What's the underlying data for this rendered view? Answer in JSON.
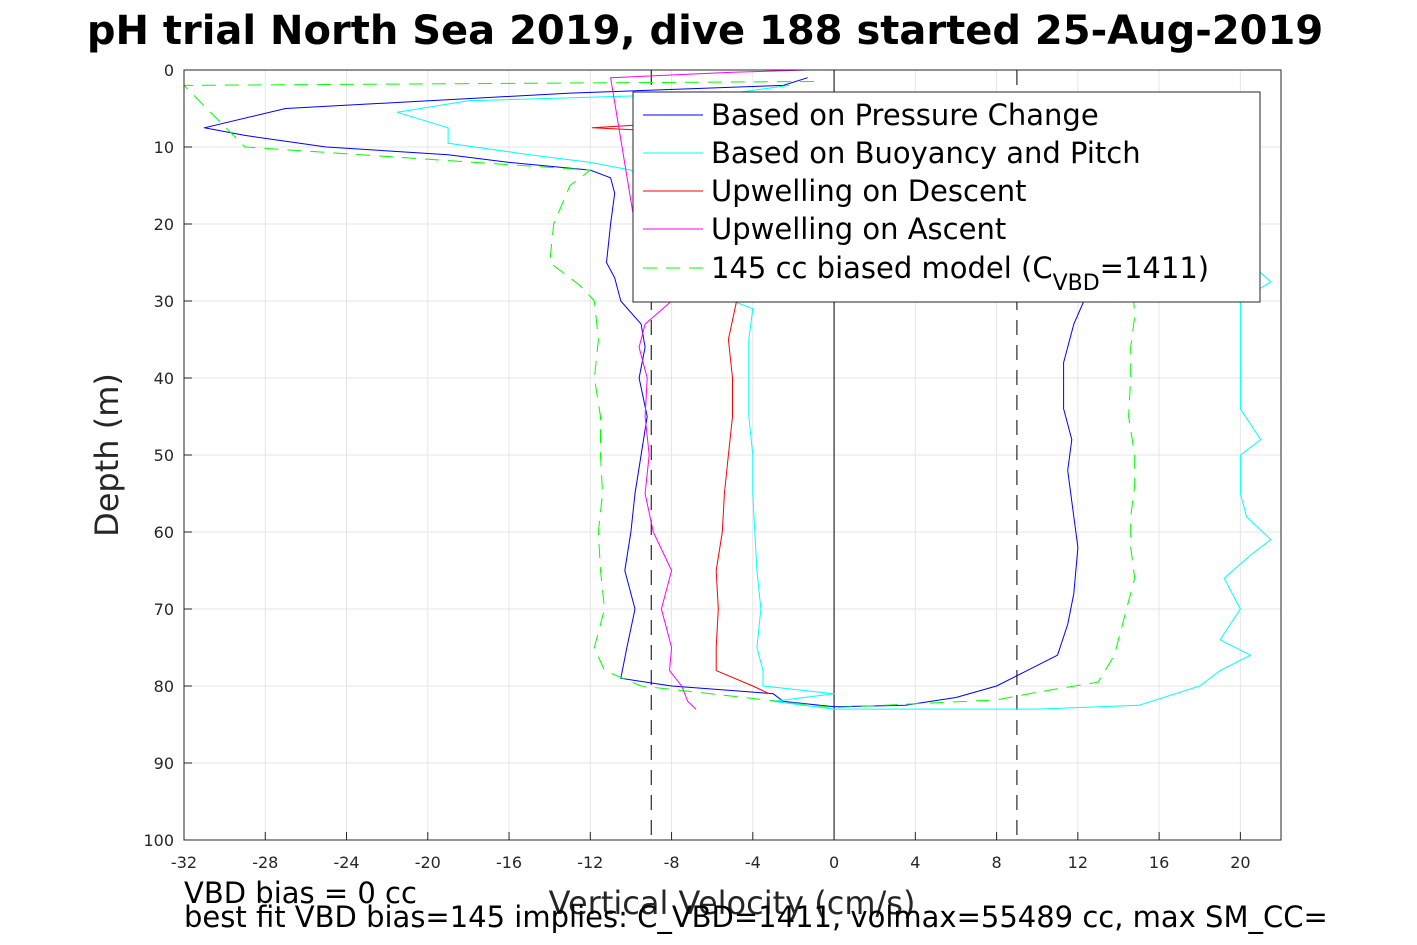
{
  "chart_data": {
    "type": "line",
    "title": "pH trial North Sea 2019, dive 188 started 25-Aug-2019",
    "xlabel": "Vertical Velocity (cm/s)",
    "ylabel": "Depth (m)",
    "xlim": [
      -32,
      22
    ],
    "ylim": [
      0,
      100
    ],
    "y_reversed": true,
    "grid": true,
    "xticks": [
      -32,
      -28,
      -24,
      -20,
      -16,
      -12,
      -8,
      -4,
      0,
      4,
      8,
      12,
      16,
      20
    ],
    "yticks": [
      0,
      10,
      20,
      30,
      40,
      50,
      60,
      70,
      80,
      90,
      100
    ],
    "legend_position": "top-right",
    "legend": {
      "pressure": "Based on Pressure Change",
      "buoyancy": "Based on Buoyancy and Pitch",
      "up_descent": "Upwelling on Descent",
      "up_ascent": "Upwelling on Ascent",
      "model_prefix": "145 cc biased model (C",
      "model_sub": "VBD",
      "model_suffix": "=1411)"
    },
    "reference_lines": [
      {
        "x": 0,
        "style": "solid",
        "color": "#000000"
      },
      {
        "x": -9.0,
        "style": "dashed",
        "color": "#000000"
      },
      {
        "x": 9.0,
        "style": "dashed",
        "color": "#000000"
      }
    ],
    "series": [
      {
        "key": "pressure",
        "color": "#0000ff",
        "style": "solid",
        "points": [
          [
            -1.3,
            1
          ],
          [
            -2.5,
            2
          ],
          [
            -13,
            3
          ],
          [
            -27,
            5
          ],
          [
            -31,
            7.5
          ],
          [
            -29,
            8.5
          ],
          [
            -25,
            10
          ],
          [
            -19,
            11
          ],
          [
            -16,
            12
          ],
          [
            -12,
            13
          ],
          [
            -11,
            14
          ],
          [
            -10.8,
            16
          ],
          [
            -11,
            20
          ],
          [
            -11.2,
            25
          ],
          [
            -10.8,
            27
          ],
          [
            -10.5,
            30
          ],
          [
            -9.5,
            33
          ],
          [
            -9.3,
            36
          ],
          [
            -9.6,
            40
          ],
          [
            -9.2,
            45
          ],
          [
            -9.5,
            50
          ],
          [
            -9.8,
            55
          ],
          [
            -10,
            60
          ],
          [
            -10.3,
            65
          ],
          [
            -9.8,
            70
          ],
          [
            -10.2,
            75
          ],
          [
            -10.5,
            79
          ],
          [
            -8,
            80
          ],
          [
            -3,
            81
          ],
          [
            -2.5,
            82
          ],
          [
            0,
            82.7
          ],
          [
            3.5,
            82.5
          ],
          [
            6,
            81.5
          ],
          [
            8,
            80
          ],
          [
            9.5,
            78
          ],
          [
            11,
            76
          ],
          [
            11.5,
            72
          ],
          [
            11.8,
            68
          ],
          [
            12,
            62
          ],
          [
            11.8,
            58
          ],
          [
            11.5,
            52
          ],
          [
            11.7,
            48
          ],
          [
            11.3,
            44
          ],
          [
            11.3,
            38
          ],
          [
            11.8,
            33
          ],
          [
            12.3,
            30
          ],
          [
            12.5,
            27
          ],
          [
            12.3,
            24
          ]
        ]
      },
      {
        "key": "buoyancy",
        "color": "#00ffff",
        "style": "solid",
        "points": [
          [
            -2.2,
            2
          ],
          [
            -5,
            3
          ],
          [
            -18,
            4
          ],
          [
            -21.5,
            5.5
          ],
          [
            -19,
            7.5
          ],
          [
            -19,
            9.5
          ],
          [
            -15,
            11
          ],
          [
            -12,
            12
          ],
          [
            -10,
            13
          ],
          [
            -7,
            20
          ],
          [
            -5,
            30
          ],
          [
            -4,
            31
          ],
          [
            -4.2,
            35
          ],
          [
            -4.2,
            40
          ],
          [
            -4.2,
            45
          ],
          [
            -4,
            50
          ],
          [
            -4,
            55
          ],
          [
            -3.9,
            60
          ],
          [
            -3.8,
            65
          ],
          [
            -3.6,
            70
          ],
          [
            -3.8,
            75
          ],
          [
            -3.5,
            78
          ],
          [
            -3.5,
            80
          ],
          [
            0,
            81
          ],
          [
            -3,
            82
          ],
          [
            0,
            83
          ],
          [
            10,
            83
          ],
          [
            15,
            82.5
          ],
          [
            18,
            80
          ],
          [
            19,
            78
          ],
          [
            20.5,
            76
          ],
          [
            19,
            74
          ],
          [
            20,
            70
          ],
          [
            19.2,
            66
          ],
          [
            20.5,
            63
          ],
          [
            21.5,
            61
          ],
          [
            20.3,
            58
          ],
          [
            20,
            55
          ],
          [
            20,
            50
          ],
          [
            21,
            48
          ],
          [
            20,
            44
          ],
          [
            20,
            38
          ],
          [
            20,
            33
          ],
          [
            20,
            30
          ],
          [
            21.5,
            27.5
          ],
          [
            20,
            24
          ],
          [
            19,
            20
          ]
        ]
      },
      {
        "key": "model",
        "color": "#00ff00",
        "style": "dashed",
        "points": [
          [
            -1,
            1.5
          ],
          [
            -32,
            2
          ],
          [
            -29,
            10
          ],
          [
            -12,
            13
          ],
          [
            -13,
            15
          ],
          [
            -13.8,
            20
          ],
          [
            -14,
            25
          ],
          [
            -12.5,
            28
          ],
          [
            -11.8,
            30
          ],
          [
            -11.6,
            35
          ],
          [
            -11.8,
            40
          ],
          [
            -11.5,
            45
          ],
          [
            -11.5,
            50
          ],
          [
            -11.4,
            55
          ],
          [
            -11.6,
            60
          ],
          [
            -11.5,
            65
          ],
          [
            -11.3,
            70
          ],
          [
            -11.8,
            75
          ],
          [
            -11.3,
            78
          ],
          [
            -9.5,
            80
          ],
          [
            0,
            82.8
          ],
          [
            8,
            81.8
          ],
          [
            10,
            80.8
          ],
          [
            13,
            79.5
          ],
          [
            13.8,
            76
          ],
          [
            14.2,
            72
          ],
          [
            14.8,
            66
          ],
          [
            14.6,
            62
          ],
          [
            14.6,
            58
          ],
          [
            14.8,
            54
          ],
          [
            14.8,
            50
          ],
          [
            14.5,
            45
          ],
          [
            14.6,
            40
          ],
          [
            14.6,
            36
          ],
          [
            14.8,
            32
          ],
          [
            14.7,
            28
          ]
        ]
      },
      {
        "key": "up_descent",
        "color": "#ff0000",
        "style": "solid",
        "points": [
          [
            -7,
            6.7
          ],
          [
            -11.9,
            7.5
          ],
          [
            -8,
            8
          ],
          [
            -4.8,
            30
          ],
          [
            -5.2,
            35
          ],
          [
            -5,
            40
          ],
          [
            -5,
            45
          ],
          [
            -5.2,
            50
          ],
          [
            -5.4,
            55
          ],
          [
            -5.5,
            60
          ],
          [
            -5.8,
            65
          ],
          [
            -5.7,
            70
          ],
          [
            -5.8,
            75
          ],
          [
            -5.8,
            78
          ],
          [
            -4,
            80
          ],
          [
            -3.2,
            81
          ]
        ]
      },
      {
        "key": "up_ascent",
        "color": "#ff00ff",
        "style": "solid",
        "points": [
          [
            -1.3,
            0
          ],
          [
            -5,
            0.3
          ],
          [
            -11,
            1
          ],
          [
            -9.5,
            25
          ],
          [
            -9,
            27
          ],
          [
            -8,
            30
          ],
          [
            -9.3,
            33
          ],
          [
            -9.6,
            36
          ],
          [
            -9.2,
            40
          ],
          [
            -9.3,
            45
          ],
          [
            -9.1,
            50
          ],
          [
            -9.3,
            55
          ],
          [
            -8.9,
            60
          ],
          [
            -8,
            65
          ],
          [
            -8.5,
            70
          ],
          [
            -8,
            75
          ],
          [
            -8.1,
            78
          ],
          [
            -7.5,
            80
          ],
          [
            -7.2,
            82
          ],
          [
            -6.8,
            83
          ]
        ]
      }
    ]
  },
  "notes": {
    "line1": "VBD bias = 0 cc",
    "line2": "best fit VBD bias=145 implies: C_VBD=1411, volmax=55489 cc, max SM_CC="
  }
}
